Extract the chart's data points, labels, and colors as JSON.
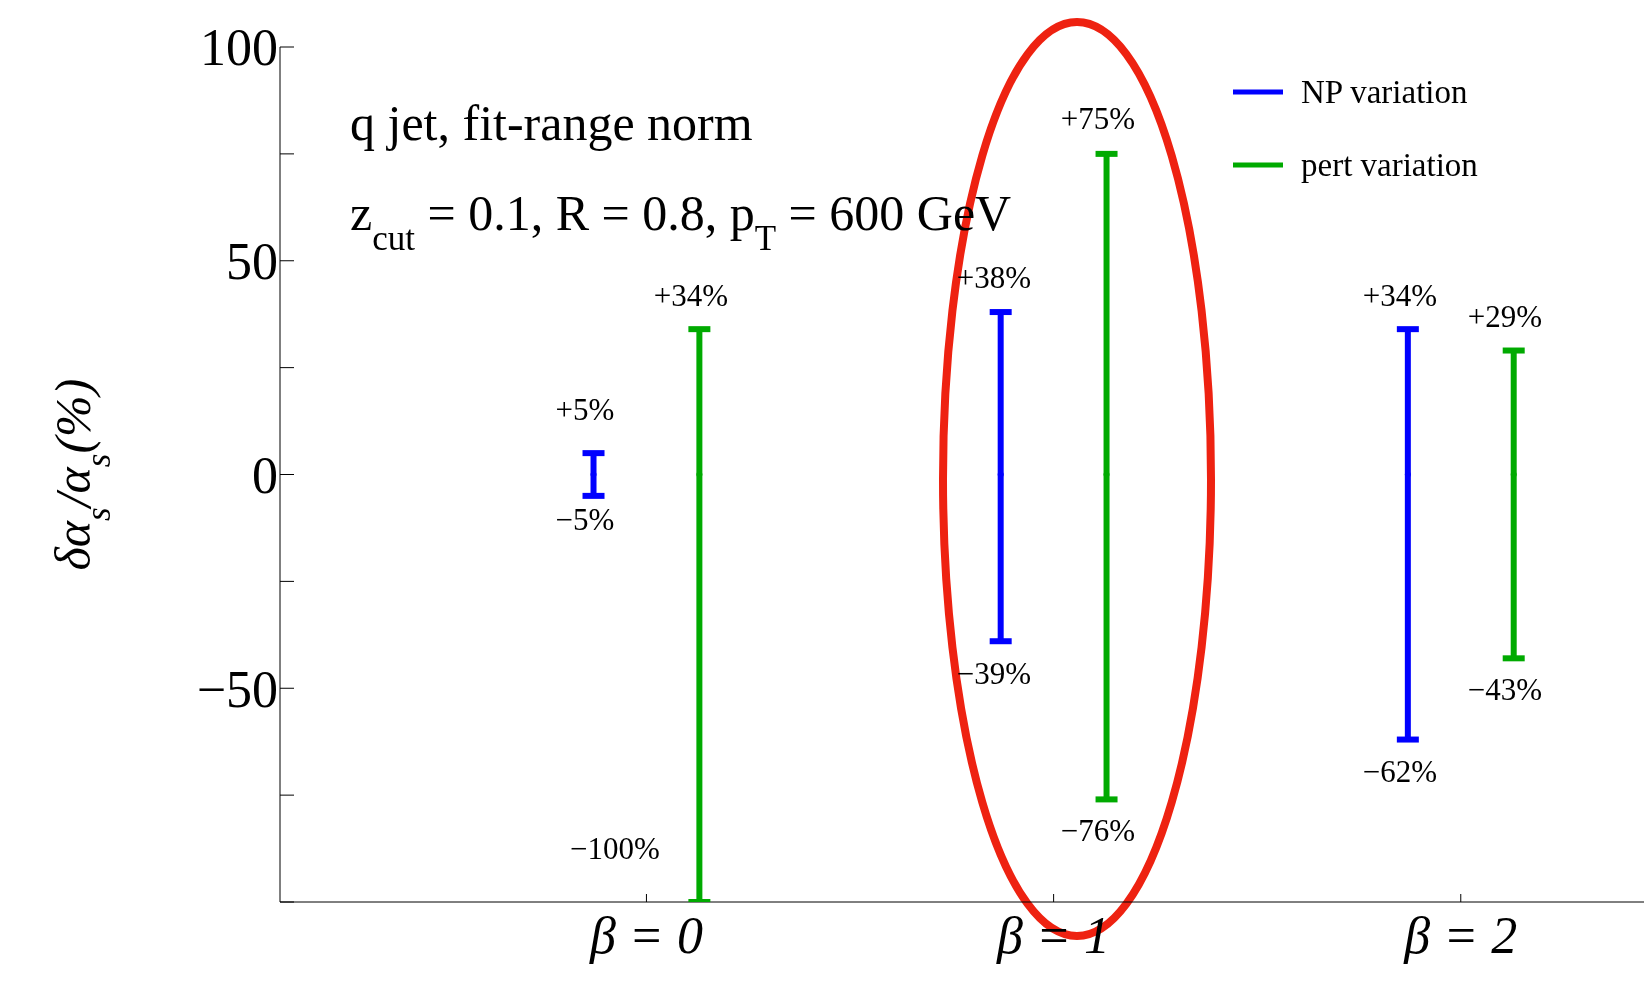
{
  "chart_data": {
    "type": "scatter",
    "title": "q jet, fit-range norm",
    "subtitle": "z$_{cut}$ = 0.1,  R = 0.8,  p$_{T}$ = 600 GeV",
    "ylabel": "δα$_{s}$/α$_{s}$(%)",
    "categories": [
      "β = 0",
      "β = 1",
      "β = 2"
    ],
    "series": [
      {
        "name": "NP variation",
        "color": "#0000ff",
        "values": [
          0,
          0,
          0
        ],
        "errors": [
          [
            -5,
            5
          ],
          [
            -39,
            38
          ],
          [
            -62,
            34
          ]
        ]
      },
      {
        "name": "pert variation",
        "color": "#00aa00",
        "values": [
          0,
          0,
          0
        ],
        "errors": [
          [
            -100,
            34
          ],
          [
            -76,
            75
          ],
          [
            -43,
            29
          ]
        ]
      }
    ],
    "ylim": [
      -100,
      100
    ],
    "yticks": [
      {
        "value": -100,
        "label": null
      },
      {
        "value": -75,
        "label": null
      },
      {
        "value": -50,
        "label": "−50"
      },
      {
        "value": -25,
        "label": null
      },
      0,
      {
        "value": 25,
        "label": null
      },
      50,
      {
        "value": 75,
        "label": null
      },
      100
    ],
    "legend": "top right",
    "annotations": [
      "+5%",
      "−5%",
      "+34%",
      "−100%",
      "+38%",
      "−39%",
      "+75%",
      "−76%",
      "+34%",
      "−62%",
      "+29%",
      "−43%"
    ]
  }
}
